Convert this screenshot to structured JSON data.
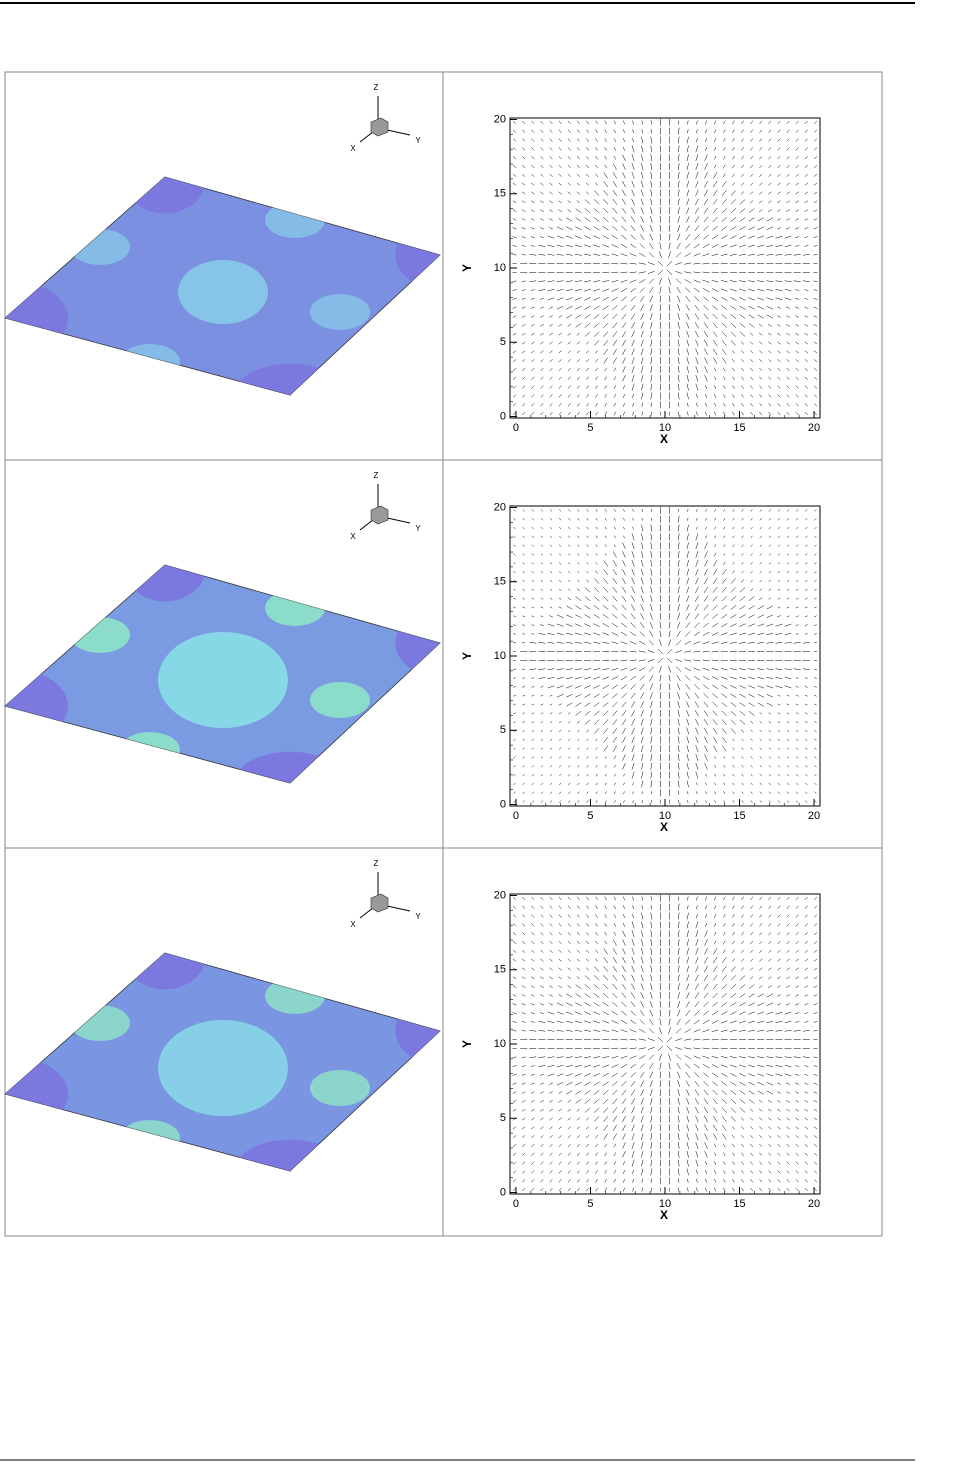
{
  "figures": [
    {
      "surface": {
        "triad": {
          "z": "Z",
          "x": "X",
          "y": "Y"
        }
      },
      "vector_plot": {
        "xlabel": "X",
        "ylabel": "Y",
        "xlim": [
          -0.4,
          20.4
        ],
        "ylim": [
          -0.1,
          20.1
        ],
        "xticks": [
          0,
          5,
          10,
          15,
          20
        ],
        "yticks": [
          0,
          5,
          10,
          15,
          20
        ]
      }
    },
    {
      "surface": {
        "triad": {
          "z": "Z",
          "x": "X",
          "y": "Y"
        }
      },
      "vector_plot": {
        "xlabel": "X",
        "ylabel": "Y",
        "xlim": [
          -0.4,
          20.4
        ],
        "ylim": [
          -0.1,
          20.1
        ],
        "xticks": [
          0,
          5,
          10,
          15,
          20
        ],
        "yticks": [
          0,
          5,
          10,
          15,
          20
        ]
      }
    },
    {
      "surface": {
        "triad": {
          "z": "Z",
          "x": "X",
          "y": "Y"
        }
      },
      "vector_plot": {
        "xlabel": "X",
        "ylabel": "Y",
        "xlim": [
          -0.4,
          20.4
        ],
        "ylim": [
          -0.1,
          20.1
        ],
        "xticks": [
          0,
          5,
          10,
          15,
          20
        ],
        "yticks": [
          0,
          5,
          10,
          15,
          20
        ]
      }
    }
  ]
}
